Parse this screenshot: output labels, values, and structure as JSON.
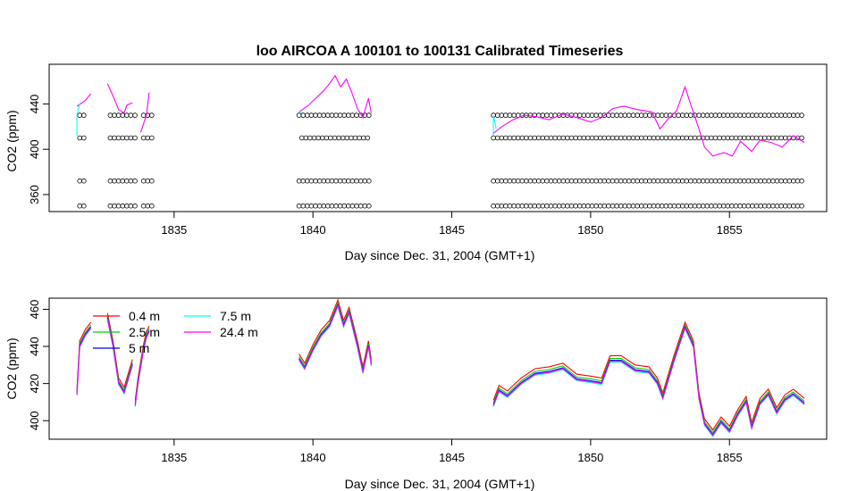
{
  "chart_data": [
    {
      "type": "line",
      "title": "loo   AIRCOA  A    100101  to  100131   Calibrated Timeseries",
      "xlabel": "Day since Dec. 31, 2004 (GMT+1)",
      "ylabel": "CO2 (ppm)",
      "xlim": [
        1830.5,
        1858.5
      ],
      "ylim": [
        345,
        475
      ],
      "xticks": [
        "1835",
        "1840",
        "1845",
        "1850",
        "1855"
      ],
      "yticks": [
        "360",
        "400",
        "440"
      ],
      "grid": false,
      "legend": "none",
      "series": [
        {
          "color": "#ff00ff",
          "segments": [
            [
              [
                1831.5,
                438
              ],
              [
                1831.8,
                443
              ],
              [
                1832.0,
                449
              ]
            ],
            [
              [
                1832.6,
                458
              ],
              [
                1832.8,
                447
              ],
              [
                1833.0,
                435
              ],
              [
                1833.2,
                432
              ],
              [
                1833.3,
                439
              ],
              [
                1833.5,
                441
              ]
            ],
            [
              [
                1833.8,
                415
              ],
              [
                1834.0,
                430
              ],
              [
                1834.1,
                450
              ]
            ],
            [
              [
                1839.5,
                433
              ],
              [
                1839.8,
                438
              ],
              [
                1840.1,
                445
              ],
              [
                1840.4,
                452
              ],
              [
                1840.6,
                458
              ],
              [
                1840.8,
                465
              ],
              [
                1841.0,
                455
              ],
              [
                1841.2,
                462
              ],
              [
                1841.4,
                450
              ],
              [
                1841.6,
                436
              ],
              [
                1841.8,
                428
              ],
              [
                1842.0,
                445
              ],
              [
                1842.1,
                432
              ]
            ],
            [
              [
                1846.5,
                414
              ],
              [
                1846.8,
                420
              ],
              [
                1847.2,
                426
              ],
              [
                1847.6,
                430
              ],
              [
                1848.0,
                429
              ],
              [
                1848.5,
                426
              ],
              [
                1849.0,
                431
              ],
              [
                1849.5,
                428
              ],
              [
                1850.0,
                424
              ],
              [
                1850.4,
                428
              ],
              [
                1850.8,
                436
              ],
              [
                1851.2,
                438
              ],
              [
                1851.7,
                435
              ],
              [
                1852.2,
                433
              ],
              [
                1852.5,
                418
              ],
              [
                1852.8,
                427
              ],
              [
                1853.1,
                434
              ],
              [
                1853.4,
                455
              ],
              [
                1853.6,
                440
              ],
              [
                1853.9,
                418
              ],
              [
                1854.1,
                402
              ],
              [
                1854.4,
                394
              ],
              [
                1854.8,
                397
              ],
              [
                1855.1,
                394
              ],
              [
                1855.4,
                407
              ],
              [
                1855.8,
                398
              ],
              [
                1856.1,
                408
              ],
              [
                1856.5,
                406
              ],
              [
                1856.9,
                402
              ],
              [
                1857.3,
                412
              ],
              [
                1857.7,
                406
              ]
            ]
          ]
        },
        {
          "color": "#00ffff",
          "segments": [
            [
              [
                1831.5,
                412
              ],
              [
                1831.5,
                430
              ],
              [
                1831.6,
                440
              ]
            ],
            [
              [
                1839.5,
                434
              ],
              [
                1839.6,
                432
              ]
            ],
            [
              [
                1846.5,
                412
              ],
              [
                1846.5,
                430
              ],
              [
                1846.6,
                418
              ]
            ]
          ]
        }
      ],
      "marker_rows": [
        {
          "y": 350,
          "x_ranges": [
            [
              1831.6,
              1831.8
            ],
            [
              1832.7,
              1833.7
            ],
            [
              1833.9,
              1834.2
            ],
            [
              1839.5,
              1842.1
            ],
            [
              1846.5,
              1857.7
            ]
          ]
        },
        {
          "y": 372,
          "x_ranges": [
            [
              1831.6,
              1831.8
            ],
            [
              1832.7,
              1833.7
            ],
            [
              1833.9,
              1834.2
            ],
            [
              1839.5,
              1842.1
            ],
            [
              1846.5,
              1857.7
            ]
          ]
        },
        {
          "y": 410,
          "x_ranges": [
            [
              1831.6,
              1831.8
            ],
            [
              1832.7,
              1833.7
            ],
            [
              1833.9,
              1834.2
            ],
            [
              1839.6,
              1842.1
            ],
            [
              1846.5,
              1857.7
            ]
          ]
        },
        {
          "y": 430,
          "x_ranges": [
            [
              1831.6,
              1831.8
            ],
            [
              1832.7,
              1833.7
            ],
            [
              1833.9,
              1834.2
            ],
            [
              1839.5,
              1842.1
            ],
            [
              1846.5,
              1857.7
            ]
          ]
        }
      ]
    },
    {
      "type": "line",
      "title": "",
      "xlabel": "Day since Dec. 31, 2004 (GMT+1)",
      "ylabel": "CO2 (ppm)",
      "xlim": [
        1830.5,
        1858.5
      ],
      "ylim": [
        390,
        466
      ],
      "xticks": [
        "1835",
        "1840",
        "1845",
        "1850",
        "1855"
      ],
      "yticks": [
        "400",
        "420",
        "440",
        "460"
      ],
      "grid": false,
      "legend": "top-left",
      "series": [
        {
          "name": "0.4 m",
          "color": "#ff0000"
        },
        {
          "name": "2.5 m",
          "color": "#00cc00"
        },
        {
          "name": "5 m",
          "color": "#0000ff"
        },
        {
          "name": "7.5 m",
          "color": "#00ffff"
        },
        {
          "name": "24.4 m",
          "color": "#ff00ff"
        }
      ],
      "base_segments": [
        [
          [
            1831.5,
            414
          ],
          [
            1831.6,
            440
          ],
          [
            1831.8,
            446
          ],
          [
            1832.0,
            450
          ]
        ],
        [
          [
            1832.6,
            455
          ],
          [
            1832.8,
            440
          ],
          [
            1833.0,
            420
          ],
          [
            1833.2,
            415
          ],
          [
            1833.4,
            425
          ],
          [
            1833.5,
            430
          ]
        ],
        [
          [
            1833.6,
            408
          ],
          [
            1833.7,
            420
          ],
          [
            1833.9,
            438
          ],
          [
            1834.0,
            445
          ],
          [
            1834.1,
            448
          ]
        ],
        [
          [
            1839.5,
            433
          ],
          [
            1839.7,
            428
          ],
          [
            1840.0,
            438
          ],
          [
            1840.3,
            446
          ],
          [
            1840.6,
            451
          ],
          [
            1840.9,
            462
          ],
          [
            1841.1,
            451
          ],
          [
            1841.3,
            458
          ],
          [
            1841.6,
            440
          ],
          [
            1841.8,
            426
          ],
          [
            1842.0,
            440
          ],
          [
            1842.1,
            430
          ]
        ],
        [
          [
            1846.5,
            408
          ],
          [
            1846.7,
            416
          ],
          [
            1847.0,
            413
          ],
          [
            1847.5,
            420
          ],
          [
            1848.0,
            425
          ],
          [
            1848.5,
            426
          ],
          [
            1849.0,
            428
          ],
          [
            1849.5,
            422
          ],
          [
            1850.0,
            421
          ],
          [
            1850.4,
            420
          ],
          [
            1850.7,
            432
          ],
          [
            1851.1,
            432
          ],
          [
            1851.6,
            427
          ],
          [
            1852.1,
            426
          ],
          [
            1852.4,
            420
          ],
          [
            1852.6,
            412
          ],
          [
            1853.0,
            432
          ],
          [
            1853.4,
            450
          ],
          [
            1853.7,
            440
          ],
          [
            1853.9,
            412
          ],
          [
            1854.1,
            398
          ],
          [
            1854.4,
            392
          ],
          [
            1854.7,
            399
          ],
          [
            1855.0,
            394
          ],
          [
            1855.3,
            403
          ],
          [
            1855.6,
            410
          ],
          [
            1855.8,
            396
          ],
          [
            1856.1,
            409
          ],
          [
            1856.4,
            414
          ],
          [
            1856.7,
            404
          ],
          [
            1857.0,
            411
          ],
          [
            1857.3,
            414
          ],
          [
            1857.7,
            409
          ]
        ]
      ],
      "series_offsets": [
        3,
        1.5,
        0.5,
        -0.5,
        0
      ]
    }
  ]
}
